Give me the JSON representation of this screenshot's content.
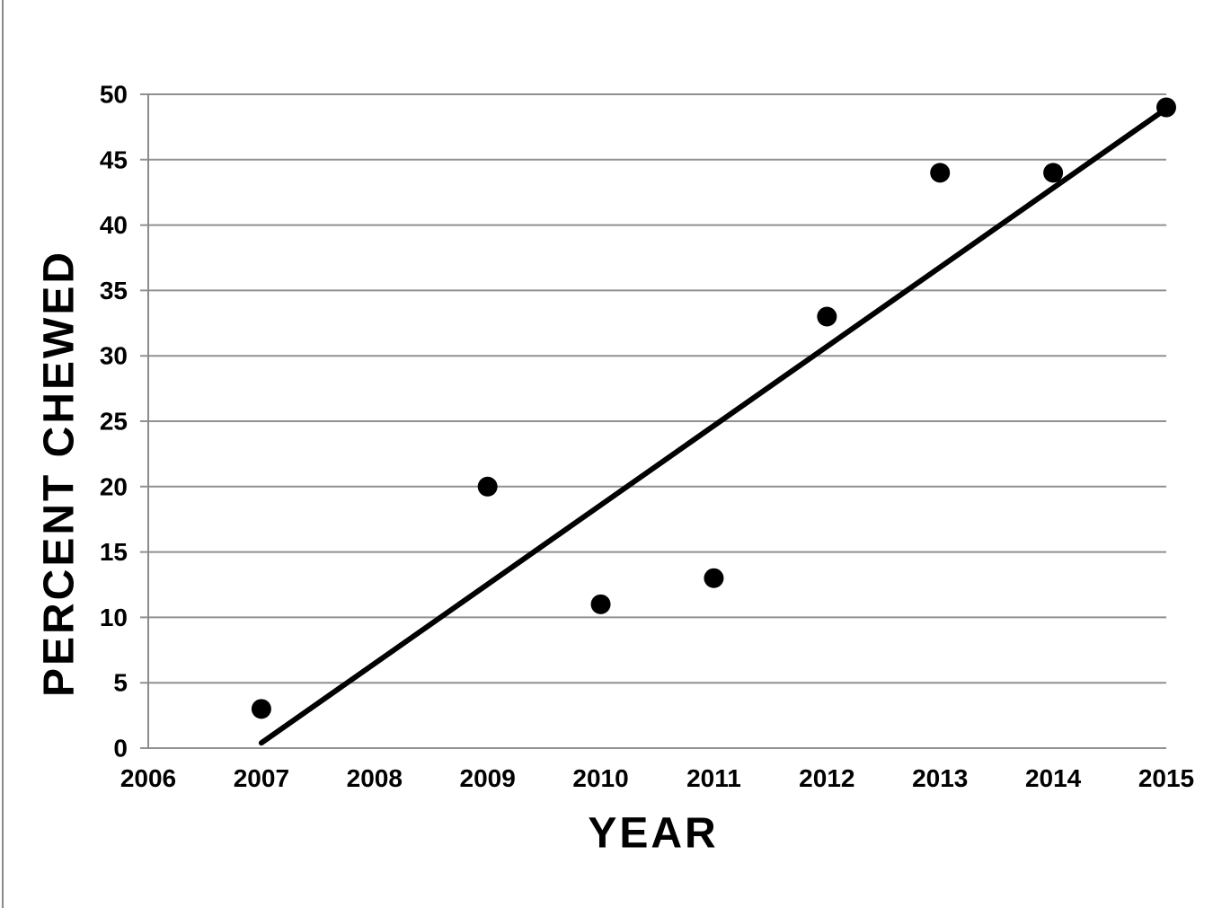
{
  "page": {
    "background": "#ffffff"
  },
  "chart_data": {
    "type": "scatter",
    "title": "",
    "xlabel": "YEAR",
    "ylabel": "PERCENT CHEWED",
    "xlim": [
      2006,
      2015
    ],
    "ylim": [
      0,
      50
    ],
    "x_ticks": [
      2006,
      2007,
      2008,
      2009,
      2010,
      2011,
      2012,
      2013,
      2014,
      2015
    ],
    "y_ticks": [
      0,
      5,
      10,
      15,
      20,
      25,
      30,
      35,
      40,
      45,
      50
    ],
    "grid": "horizontal-only",
    "legend": "none",
    "series": [
      {
        "name": "percent-chewed-points",
        "type": "scatter",
        "points": [
          {
            "x": 2007,
            "y": 3
          },
          {
            "x": 2009,
            "y": 20
          },
          {
            "x": 2010,
            "y": 11
          },
          {
            "x": 2011,
            "y": 13
          },
          {
            "x": 2012,
            "y": 33
          },
          {
            "x": 2013,
            "y": 44
          },
          {
            "x": 2014,
            "y": 44
          },
          {
            "x": 2015,
            "y": 49
          }
        ],
        "marker": {
          "shape": "circle",
          "radius": 11,
          "color": "#000000"
        }
      },
      {
        "name": "trend-line",
        "type": "line",
        "points": [
          {
            "x": 2007,
            "y": 0.4
          },
          {
            "x": 2015,
            "y": 48.9
          }
        ],
        "stroke": {
          "width": 6,
          "color": "#000000"
        }
      }
    ],
    "colors": {
      "gridline": "#909090",
      "axis": "#8a8a8a",
      "text": "#000000",
      "background": "#ffffff"
    }
  }
}
